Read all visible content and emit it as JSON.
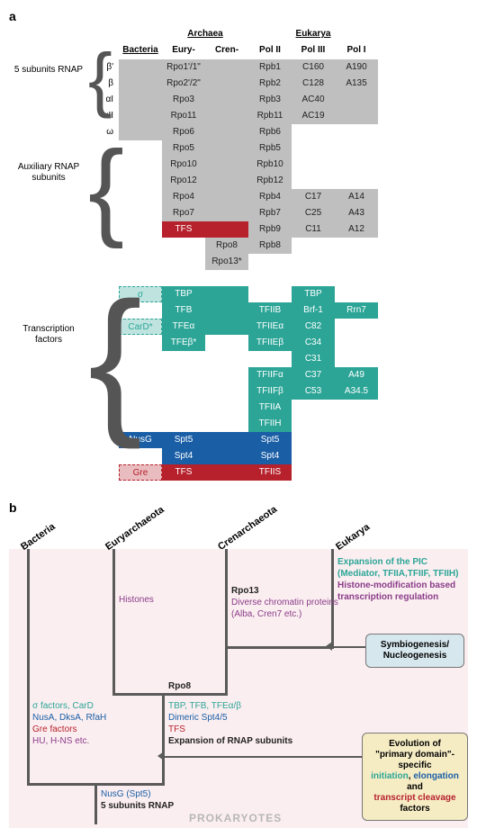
{
  "panelA": {
    "label": "a",
    "sections": [
      "5 subunits RNAP",
      "Auxiliary RNAP subunits",
      "Transcription factors"
    ],
    "domainHeaders": [
      "Archaea",
      "Eukarya"
    ],
    "colHeaders": [
      "Bacteria",
      "Eury-",
      "Cren-",
      "Pol II",
      "Pol III",
      "Pol I"
    ],
    "rows": [
      {
        "rl": "β'",
        "c": [
          "gray",
          "gray",
          "gray",
          "gray",
          "gray",
          "gray"
        ],
        "v": [
          "",
          "Rpo1'/1\"",
          "",
          "Rpb1",
          "C160",
          "A190"
        ]
      },
      {
        "rl": "β",
        "c": [
          "gray",
          "gray",
          "gray",
          "gray",
          "gray",
          "gray"
        ],
        "v": [
          "",
          "Rpo2'/2\"",
          "",
          "Rpb2",
          "C128",
          "A135"
        ]
      },
      {
        "rl": "αI",
        "c": [
          "gray",
          "gray",
          "gray",
          "gray",
          "gray",
          "gray"
        ],
        "v": [
          "",
          "Rpo3",
          "",
          "Rpb3",
          "AC40",
          ""
        ]
      },
      {
        "rl": "αII",
        "c": [
          "gray",
          "gray",
          "gray",
          "gray",
          "gray",
          "gray"
        ],
        "v": [
          "",
          "Rpo11",
          "",
          "Rpb11",
          "AC19",
          ""
        ]
      },
      {
        "rl": "ω",
        "c": [
          "gray",
          "gray",
          "gray",
          "gray",
          "empty",
          "empty"
        ],
        "v": [
          "",
          "Rpo6",
          "",
          "Rpb6",
          "",
          ""
        ]
      },
      {
        "rl": "",
        "c": [
          "empty",
          "gray",
          "gray",
          "gray",
          "empty",
          "empty"
        ],
        "v": [
          "",
          "Rpo5",
          "",
          "Rpb5",
          "",
          ""
        ]
      },
      {
        "rl": "",
        "c": [
          "empty",
          "gray",
          "gray",
          "gray",
          "empty",
          "empty"
        ],
        "v": [
          "",
          "Rpo10",
          "",
          "Rpb10",
          "",
          ""
        ]
      },
      {
        "rl": "",
        "c": [
          "empty",
          "gray",
          "gray",
          "gray",
          "empty",
          "empty"
        ],
        "v": [
          "",
          "Rpo12",
          "",
          "Rpb12",
          "",
          ""
        ]
      },
      {
        "rl": "",
        "c": [
          "empty",
          "gray",
          "gray",
          "gray",
          "gray",
          "gray"
        ],
        "v": [
          "",
          "Rpo4",
          "",
          "Rpb4",
          "C17",
          "A14"
        ]
      },
      {
        "rl": "",
        "c": [
          "empty",
          "gray",
          "gray",
          "gray",
          "gray",
          "gray"
        ],
        "v": [
          "",
          "Rpo7",
          "",
          "Rpb7",
          "C25",
          "A43"
        ]
      },
      {
        "rl": "",
        "c": [
          "empty",
          "red",
          "red",
          "gray",
          "gray",
          "gray"
        ],
        "v": [
          "",
          "TFS",
          "",
          "Rpb9",
          "C11",
          "A12"
        ]
      },
      {
        "rl": "",
        "c": [
          "empty",
          "empty",
          "gray",
          "gray",
          "empty",
          "empty"
        ],
        "v": [
          "",
          "",
          "Rpo8",
          "Rpb8",
          "",
          ""
        ]
      },
      {
        "rl": "",
        "c": [
          "empty",
          "empty",
          "gray",
          "empty",
          "empty",
          "empty"
        ],
        "v": [
          "",
          "",
          "Rpo13*",
          "",
          "",
          ""
        ]
      },
      {
        "rl": "",
        "c": [
          "empty",
          "empty",
          "empty",
          "empty",
          "empty",
          "empty"
        ],
        "v": [
          "",
          "",
          "",
          "",
          "",
          ""
        ]
      },
      {
        "rl": "",
        "c": [
          "dteal",
          "teal",
          "teal",
          "empty",
          "teal",
          "empty"
        ],
        "v": [
          "σ",
          "TBP",
          "",
          "",
          "TBP",
          ""
        ]
      },
      {
        "rl": "",
        "c": [
          "empty",
          "teal",
          "teal",
          "teal",
          "teal",
          "teal"
        ],
        "v": [
          "",
          "TFB",
          "",
          "TFIIB",
          "Brf-1",
          "Rrn7"
        ]
      },
      {
        "rl": "",
        "c": [
          "dteal",
          "teal",
          "teal",
          "teal",
          "teal",
          "empty"
        ],
        "v": [
          "CarD*",
          "TFEα",
          "",
          "TFIIEα",
          "C82",
          ""
        ]
      },
      {
        "rl": "",
        "c": [
          "empty",
          "teal",
          "empty",
          "teal",
          "teal",
          "empty"
        ],
        "v": [
          "",
          "TFEβ*",
          "",
          "TFIIEβ",
          "C34",
          ""
        ]
      },
      {
        "rl": "",
        "c": [
          "empty",
          "empty",
          "empty",
          "empty",
          "teal",
          "empty"
        ],
        "v": [
          "",
          "",
          "",
          "",
          "C31",
          ""
        ]
      },
      {
        "rl": "",
        "c": [
          "empty",
          "empty",
          "empty",
          "teal",
          "teal",
          "teal"
        ],
        "v": [
          "",
          "",
          "",
          "TFIIFα",
          "C37",
          "A49"
        ]
      },
      {
        "rl": "",
        "c": [
          "empty",
          "empty",
          "empty",
          "teal",
          "teal",
          "teal"
        ],
        "v": [
          "",
          "",
          "",
          "TFIIFβ",
          "C53",
          "A34.5"
        ]
      },
      {
        "rl": "",
        "c": [
          "empty",
          "empty",
          "empty",
          "teal",
          "empty",
          "empty"
        ],
        "v": [
          "",
          "",
          "",
          "TFIIA",
          "",
          ""
        ]
      },
      {
        "rl": "",
        "c": [
          "empty",
          "empty",
          "empty",
          "teal",
          "empty",
          "empty"
        ],
        "v": [
          "",
          "",
          "",
          "TFIIH",
          "",
          ""
        ]
      },
      {
        "rl": "",
        "c": [
          "blue",
          "blue",
          "blue",
          "blue",
          "empty",
          "empty"
        ],
        "v": [
          "NusG",
          "Spt5",
          "",
          "Spt5",
          "",
          ""
        ]
      },
      {
        "rl": "",
        "c": [
          "empty",
          "blue",
          "blue",
          "blue",
          "empty",
          "empty"
        ],
        "v": [
          "",
          "Spt4",
          "",
          "Spt4",
          "",
          ""
        ]
      },
      {
        "rl": "",
        "c": [
          "dred",
          "red",
          "red",
          "red",
          "empty",
          "empty"
        ],
        "v": [
          "Gre",
          "TFS",
          "",
          "TFIIS",
          "",
          ""
        ]
      }
    ]
  },
  "panelB": {
    "label": "b",
    "leaves": [
      "Bacteria",
      "Euryarchaeota",
      "Crenarchaeota",
      "Eukarya"
    ],
    "prokLabel": "PROKARYOTES",
    "bacteria": {
      "l1": "σ factors, CarD",
      "l2": "NusA, DksA, RfaH",
      "l3": "Gre factors",
      "l4": "HU, H-NS etc."
    },
    "eury": {
      "l1": "Histones"
    },
    "cren": {
      "l1": "Rpo13",
      "l2": "Diverse chromatin proteins",
      "l3": "(Alba, Cren7 etc.)"
    },
    "archEuk": {
      "l0": "Rpo8",
      "l1": "TBP, TFB, TFEα/β",
      "l2": "Dimeric Spt4/5",
      "l3": "TFS",
      "l4": "Expansion of RNAP subunits"
    },
    "root": {
      "l1": "NusG (Spt5)",
      "l2": "5 subunits RNAP"
    },
    "euk": {
      "l1": "Expansion of the PIC",
      "l2": "(Mediator, TFIIA,TFIIF, TFIIH)",
      "l3": "Histone-modification based transcription regulation"
    },
    "callout1": {
      "l1": "Symbiogenesis/",
      "l2": "Nucleogenesis"
    },
    "callout2": {
      "pre": "Evolution of",
      "mid1": "\"primary domain\"-specific",
      "init": "initiation",
      "elong": "elongation",
      "and": " and ",
      "tc": "transcript cleavage",
      "post": " factors"
    }
  }
}
